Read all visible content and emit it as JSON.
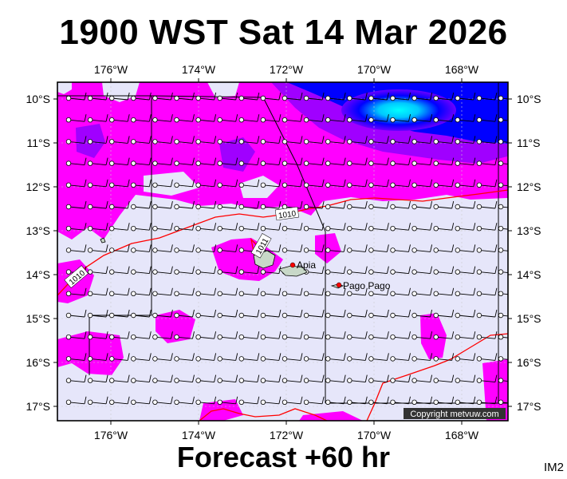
{
  "header": {
    "title": "1900 WST Sat 14 Mar 2026"
  },
  "footer": {
    "forecast": "Forecast +60 hr",
    "image_code": "IM2",
    "copyright": "Copyright metvuw.com"
  },
  "map": {
    "longitude_labels": [
      "176°W",
      "174°W",
      "172°W",
      "170°W",
      "168°W"
    ],
    "latitude_labels": [
      "10°S",
      "11°S",
      "12°S",
      "13°S",
      "14°S",
      "15°S",
      "16°S",
      "17°S"
    ],
    "places": [
      {
        "name": "Apia",
        "lon": -171.75,
        "lat": -13.83
      },
      {
        "name": "Pago Pago",
        "lon": -170.7,
        "lat": -14.28
      }
    ],
    "isobar_labels": [
      "1010",
      "1011",
      "1010"
    ],
    "colors": {
      "land": "#c8d8c8",
      "background": "#e6e6fa",
      "rain_light": "#ff00ff",
      "rain_medium": "#b000ff",
      "rain_heavy": "#0000ff",
      "rain_peak": "#00ffff",
      "isobar": "#ff0000",
      "city": "#ff0000"
    }
  }
}
